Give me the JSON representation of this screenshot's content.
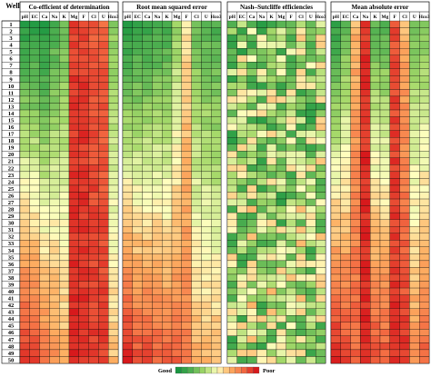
{
  "chart_data": {
    "type": "heatmap",
    "row_header": "Well",
    "rows": [
      "1",
      "2",
      "3",
      "4",
      "5",
      "6",
      "7",
      "8",
      "9",
      "10",
      "11",
      "12",
      "13",
      "14",
      "15",
      "16",
      "17",
      "18",
      "19",
      "20",
      "21",
      "22",
      "23",
      "24",
      "25",
      "26",
      "27",
      "28",
      "29",
      "30",
      "31",
      "32",
      "33",
      "34",
      "35",
      "36",
      "37",
      "38",
      "39",
      "40",
      "41",
      "42",
      "43",
      "44",
      "45",
      "46",
      "47",
      "48",
      "49",
      "50"
    ],
    "panels": [
      {
        "title": "Co-efficient of determination",
        "columns": [
          "pH",
          "EC",
          "Ca",
          "Na",
          "K",
          "Mg",
          "F",
          "Cl",
          "U",
          "Hco3"
        ],
        "pattern": {
          "base": [
            0.05,
            0.05,
            0.03,
            0.15,
            0.22,
            0.92,
            0.93,
            0.88,
            0.85,
            0.28
          ],
          "gain": [
            0.9,
            0.88,
            0.78,
            0.6,
            0.45,
            0.05,
            0.02,
            0.05,
            0.08,
            0.35
          ],
          "noise": 0.09,
          "seed": 11
        }
      },
      {
        "title": "Root mean squared error",
        "columns": [
          "pH",
          "EC",
          "Ca",
          "Na",
          "K",
          "Mg",
          "F",
          "Cl",
          "U",
          "Hco3"
        ],
        "pattern": {
          "base": [
            0.05,
            0.08,
            0.1,
            0.12,
            0.12,
            0.3,
            0.55,
            0.22,
            0.2,
            0.15
          ],
          "gain": [
            0.95,
            0.82,
            0.8,
            0.75,
            0.72,
            0.55,
            0.25,
            0.45,
            0.45,
            0.5
          ],
          "noise": 0.09,
          "seed": 23
        }
      },
      {
        "title": "Nash–Sutcliffe efficiencies",
        "columns": [
          "pH",
          "EC",
          "Ca",
          "Na",
          "K",
          "Mg",
          "F",
          "Cl",
          "U",
          "Hco3"
        ],
        "pattern": {
          "base": [
            0.3,
            0.32,
            0.35,
            0.3,
            0.35,
            0.3,
            0.32,
            0.34,
            0.3,
            0.33
          ],
          "gain": [
            0.05,
            0.05,
            0.05,
            0.05,
            0.05,
            0.05,
            0.05,
            0.05,
            0.05,
            0.05
          ],
          "noise": 0.55,
          "seed": 37
        }
      },
      {
        "title": "Mean absolute error",
        "columns": [
          "pH",
          "EC",
          "Ca",
          "Na",
          "K",
          "Mg",
          "F",
          "Cl",
          "U",
          "Hco3"
        ],
        "pattern": {
          "base": [
            0.08,
            0.22,
            0.65,
            0.95,
            0.2,
            0.18,
            0.9,
            0.65,
            0.25,
            0.25
          ],
          "gain": [
            0.9,
            0.7,
            0.2,
            0.02,
            0.7,
            0.7,
            0.05,
            0.3,
            0.5,
            0.6
          ],
          "noise": 0.1,
          "seed": 53
        }
      }
    ],
    "colorbar": {
      "low_label": "Good",
      "high_label": "Poor",
      "colors": [
        "#1a9641",
        "#52b151",
        "#a6d96a",
        "#ffffbf",
        "#fdae61",
        "#f46d43",
        "#d7191c"
      ]
    }
  }
}
